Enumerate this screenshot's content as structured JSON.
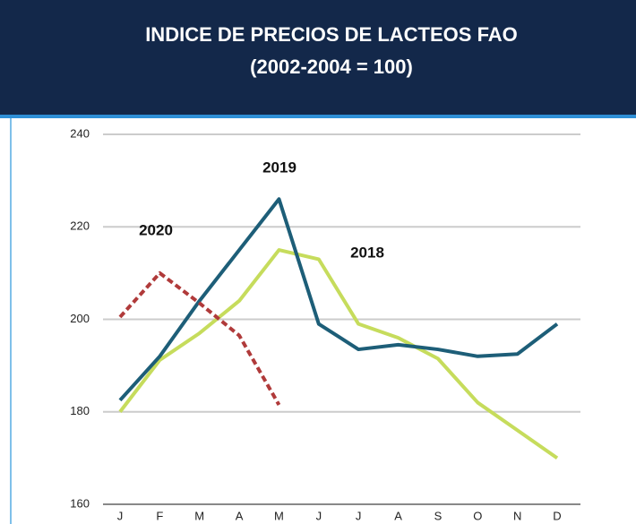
{
  "chart_data": {
    "type": "line",
    "title": "INDICE DE PRECIOS DE LACTEOS FAO",
    "subtitle": "(2002-2004 = 100)",
    "categories": [
      "J",
      "F",
      "M",
      "A",
      "M",
      "J",
      "J",
      "A",
      "S",
      "O",
      "N",
      "D"
    ],
    "series": [
      {
        "name": "2018",
        "color": "#c6dc5c",
        "values": [
          180,
          191.2,
          197,
          204,
          215,
          213,
          199,
          196,
          191.5,
          182,
          176,
          170
        ]
      },
      {
        "name": "2019",
        "color": "#1d5e78",
        "values": [
          182.5,
          192,
          204,
          215,
          226,
          199,
          193.5,
          194.5,
          193.5,
          192,
          192.5,
          199
        ]
      },
      {
        "name": "2020",
        "color": "#b03a3a",
        "dashed": true,
        "values": [
          200.5,
          210,
          203.5,
          196.5,
          181.5,
          null,
          null,
          null,
          null,
          null,
          null,
          null
        ]
      }
    ],
    "ylim": [
      160,
      240
    ],
    "yticks": [
      160,
      180,
      200,
      220,
      240
    ],
    "grid": true
  }
}
